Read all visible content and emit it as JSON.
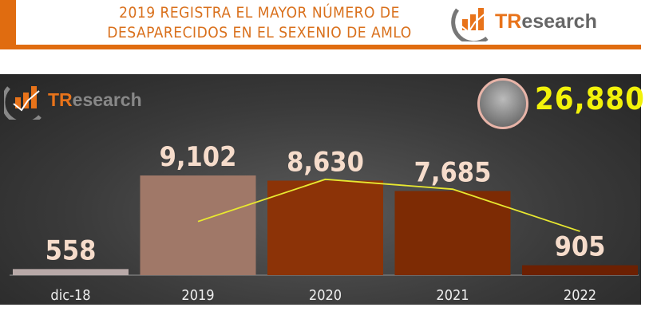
{
  "header": {
    "title_line1": "2019 REGISTRA EL MAYOR NÚMERO DE",
    "title_line2": "DESAPARECIDOS EN EL SEXENIO DE AMLO",
    "logo": "TResearch"
  },
  "panel": {
    "logo": "TResearch",
    "total": "26,880"
  },
  "chart_data": {
    "type": "bar",
    "title": "2019 REGISTRA EL MAYOR NÚMERO DE DESAPARECIDOS EN EL SEXENIO DE AMLO",
    "categories": [
      "dic-18",
      "2019",
      "2020",
      "2021",
      "2022"
    ],
    "values": [
      558,
      9102,
      8630,
      7685,
      905
    ],
    "value_labels": [
      "558",
      "9,102",
      "8,630",
      "7,685",
      "905"
    ],
    "bar_colors": [
      "#b8a9a8",
      "#a07868",
      "#8c3307",
      "#7d2b04",
      "#6c2002"
    ],
    "line_series": {
      "name": "trend",
      "x": [
        "2019",
        "2020",
        "2021",
        "2022"
      ],
      "values": [
        4900,
        8750,
        7850,
        4000
      ],
      "color": "#e8e830"
    },
    "ylim": [
      0,
      9500
    ],
    "grid": false,
    "xlabel": "",
    "ylabel": ""
  }
}
